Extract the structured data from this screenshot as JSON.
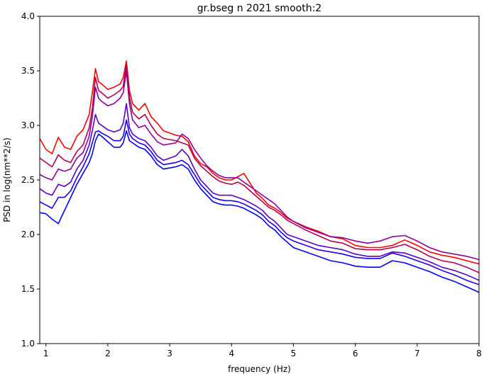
{
  "chart_data": {
    "type": "line",
    "title": "gr.bseg n 2021 smooth:2",
    "xlabel": "frequency (Hz)",
    "ylabel": "PSD in log(nm**2/s)",
    "xlim": [
      0.9,
      8.0
    ],
    "ylim": [
      1.0,
      4.0
    ],
    "xticks": [
      "1",
      "2",
      "3",
      "4",
      "5",
      "6",
      "7",
      "8"
    ],
    "yticks": [
      "1.0",
      "1.5",
      "2.0",
      "2.5",
      "3.0",
      "3.5",
      "4.0"
    ],
    "grid": false,
    "legend": "none",
    "series": [
      {
        "color": "#ff0000",
        "x": [
          0.9,
          1.0,
          1.1,
          1.2,
          1.3,
          1.4,
          1.5,
          1.6,
          1.7,
          1.75,
          1.8,
          1.85,
          1.9,
          2.0,
          2.1,
          2.2,
          2.25,
          2.3,
          2.35,
          2.4,
          2.5,
          2.6,
          2.7,
          2.8,
          2.9,
          3.0,
          3.1,
          3.2,
          3.3,
          3.4,
          3.5,
          3.6,
          3.7,
          3.8,
          3.9,
          4.0,
          4.1,
          4.2,
          4.3,
          4.4,
          4.5,
          4.6,
          4.7,
          4.8,
          4.9,
          5.0,
          5.2,
          5.4,
          5.6,
          5.8,
          6.0,
          6.2,
          6.4,
          6.6,
          6.8,
          7.0,
          7.2,
          7.4,
          7.6,
          7.8,
          8.0
        ],
        "y": [
          2.88,
          2.78,
          2.74,
          2.89,
          2.8,
          2.78,
          2.9,
          2.96,
          3.1,
          3.3,
          3.52,
          3.4,
          3.38,
          3.33,
          3.35,
          3.38,
          3.44,
          3.59,
          3.32,
          3.2,
          3.14,
          3.2,
          3.08,
          3.02,
          2.95,
          2.93,
          2.91,
          2.9,
          2.85,
          2.72,
          2.65,
          2.62,
          2.56,
          2.52,
          2.5,
          2.5,
          2.53,
          2.56,
          2.47,
          2.38,
          2.33,
          2.27,
          2.24,
          2.2,
          2.15,
          2.12,
          2.07,
          2.03,
          1.98,
          1.96,
          1.9,
          1.88,
          1.88,
          1.9,
          1.95,
          1.9,
          1.84,
          1.81,
          1.79,
          1.76,
          1.73
        ]
      },
      {
        "color": "#b3004d",
        "x": [
          0.9,
          1.0,
          1.1,
          1.2,
          1.3,
          1.4,
          1.5,
          1.6,
          1.7,
          1.75,
          1.8,
          1.85,
          1.9,
          2.0,
          2.1,
          2.2,
          2.25,
          2.3,
          2.35,
          2.4,
          2.5,
          2.6,
          2.7,
          2.8,
          2.9,
          3.0,
          3.1,
          3.2,
          3.3,
          3.4,
          3.5,
          3.6,
          3.7,
          3.8,
          3.9,
          4.0,
          4.1,
          4.2,
          4.3,
          4.4,
          4.5,
          4.6,
          4.7,
          4.8,
          4.9,
          5.0,
          5.2,
          5.4,
          5.6,
          5.8,
          6.0,
          6.2,
          6.4,
          6.6,
          6.8,
          7.0,
          7.2,
          7.4,
          7.6,
          7.8,
          8.0
        ],
        "y": [
          2.7,
          2.66,
          2.62,
          2.73,
          2.68,
          2.66,
          2.76,
          2.82,
          2.98,
          3.15,
          3.44,
          3.32,
          3.3,
          3.25,
          3.28,
          3.32,
          3.36,
          3.56,
          3.26,
          3.12,
          3.06,
          3.1,
          3.0,
          2.92,
          2.88,
          2.87,
          2.86,
          2.84,
          2.82,
          2.7,
          2.63,
          2.58,
          2.53,
          2.49,
          2.47,
          2.46,
          2.48,
          2.45,
          2.4,
          2.35,
          2.3,
          2.25,
          2.22,
          2.18,
          2.13,
          2.1,
          2.04,
          1.99,
          1.94,
          1.92,
          1.87,
          1.86,
          1.86,
          1.88,
          1.91,
          1.86,
          1.8,
          1.76,
          1.74,
          1.7,
          1.65
        ]
      },
      {
        "color": "#8a0099",
        "x": [
          0.9,
          1.0,
          1.1,
          1.2,
          1.3,
          1.4,
          1.5,
          1.6,
          1.7,
          1.75,
          1.8,
          1.85,
          1.9,
          2.0,
          2.1,
          2.2,
          2.25,
          2.3,
          2.35,
          2.4,
          2.5,
          2.6,
          2.7,
          2.8,
          2.9,
          3.0,
          3.1,
          3.2,
          3.3,
          3.4,
          3.5,
          3.6,
          3.7,
          3.8,
          3.9,
          4.0,
          4.1,
          4.2,
          4.3,
          4.4,
          4.5,
          4.6,
          4.7,
          4.8,
          4.9,
          5.0,
          5.2,
          5.4,
          5.6,
          5.8,
          6.0,
          6.2,
          6.4,
          6.6,
          6.8,
          7.0,
          7.2,
          7.4,
          7.6,
          7.8,
          8.0
        ],
        "y": [
          2.55,
          2.52,
          2.5,
          2.6,
          2.58,
          2.6,
          2.7,
          2.75,
          2.9,
          3.08,
          3.35,
          3.25,
          3.22,
          3.18,
          3.2,
          3.25,
          3.3,
          3.5,
          3.2,
          3.05,
          2.98,
          3.0,
          2.92,
          2.85,
          2.82,
          2.83,
          2.84,
          2.92,
          2.88,
          2.78,
          2.7,
          2.63,
          2.58,
          2.54,
          2.52,
          2.52,
          2.52,
          2.48,
          2.44,
          2.4,
          2.36,
          2.32,
          2.28,
          2.22,
          2.16,
          2.12,
          2.06,
          2.02,
          1.98,
          1.97,
          1.94,
          1.92,
          1.94,
          1.98,
          1.99,
          1.94,
          1.88,
          1.84,
          1.82,
          1.8,
          1.77
        ]
      },
      {
        "color": "#5a00c8",
        "x": [
          0.9,
          1.0,
          1.1,
          1.2,
          1.3,
          1.4,
          1.5,
          1.6,
          1.7,
          1.75,
          1.8,
          1.85,
          1.9,
          2.0,
          2.1,
          2.2,
          2.25,
          2.3,
          2.35,
          2.4,
          2.5,
          2.6,
          2.7,
          2.8,
          2.9,
          3.0,
          3.1,
          3.2,
          3.3,
          3.4,
          3.5,
          3.6,
          3.7,
          3.8,
          3.9,
          4.0,
          4.1,
          4.2,
          4.3,
          4.4,
          4.5,
          4.6,
          4.7,
          4.8,
          4.9,
          5.0,
          5.2,
          5.4,
          5.6,
          5.8,
          6.0,
          6.2,
          6.4,
          6.6,
          6.8,
          7.0,
          7.2,
          7.4,
          7.6,
          7.8,
          8.0
        ],
        "y": [
          2.42,
          2.38,
          2.36,
          2.46,
          2.44,
          2.48,
          2.6,
          2.68,
          2.82,
          2.95,
          3.1,
          3.02,
          3.0,
          2.96,
          2.94,
          2.96,
          3.02,
          3.2,
          2.98,
          2.92,
          2.88,
          2.86,
          2.8,
          2.72,
          2.68,
          2.7,
          2.72,
          2.78,
          2.72,
          2.6,
          2.5,
          2.44,
          2.38,
          2.36,
          2.36,
          2.36,
          2.34,
          2.32,
          2.29,
          2.26,
          2.22,
          2.16,
          2.12,
          2.06,
          2.0,
          1.98,
          1.94,
          1.9,
          1.88,
          1.86,
          1.82,
          1.8,
          1.8,
          1.84,
          1.83,
          1.79,
          1.75,
          1.7,
          1.67,
          1.63,
          1.58
        ]
      },
      {
        "color": "#1a00e6",
        "x": [
          0.9,
          1.0,
          1.1,
          1.2,
          1.3,
          1.4,
          1.5,
          1.6,
          1.7,
          1.75,
          1.8,
          1.85,
          1.9,
          2.0,
          2.1,
          2.2,
          2.25,
          2.3,
          2.35,
          2.4,
          2.5,
          2.6,
          2.7,
          2.8,
          2.9,
          3.0,
          3.1,
          3.2,
          3.3,
          3.4,
          3.5,
          3.6,
          3.7,
          3.8,
          3.9,
          4.0,
          4.1,
          4.2,
          4.3,
          4.4,
          4.5,
          4.6,
          4.7,
          4.8,
          4.9,
          5.0,
          5.2,
          5.4,
          5.6,
          5.8,
          6.0,
          6.2,
          6.4,
          6.6,
          6.8,
          7.0,
          7.2,
          7.4,
          7.6,
          7.8,
          8.0
        ],
        "y": [
          2.3,
          2.27,
          2.24,
          2.34,
          2.34,
          2.4,
          2.52,
          2.62,
          2.74,
          2.84,
          2.94,
          2.95,
          2.93,
          2.9,
          2.86,
          2.86,
          2.9,
          3.05,
          2.92,
          2.88,
          2.84,
          2.82,
          2.76,
          2.68,
          2.64,
          2.65,
          2.66,
          2.68,
          2.64,
          2.55,
          2.46,
          2.4,
          2.34,
          2.32,
          2.31,
          2.31,
          2.3,
          2.28,
          2.25,
          2.22,
          2.18,
          2.12,
          2.08,
          2.02,
          1.97,
          1.94,
          1.9,
          1.86,
          1.84,
          1.82,
          1.79,
          1.78,
          1.78,
          1.83,
          1.8,
          1.76,
          1.72,
          1.67,
          1.63,
          1.58,
          1.54
        ]
      },
      {
        "color": "#0000ff",
        "x": [
          0.9,
          1.0,
          1.1,
          1.2,
          1.3,
          1.4,
          1.5,
          1.6,
          1.7,
          1.75,
          1.8,
          1.85,
          1.9,
          2.0,
          2.1,
          2.2,
          2.25,
          2.3,
          2.35,
          2.4,
          2.5,
          2.6,
          2.7,
          2.8,
          2.9,
          3.0,
          3.1,
          3.2,
          3.3,
          3.4,
          3.5,
          3.6,
          3.7,
          3.8,
          3.9,
          4.0,
          4.1,
          4.2,
          4.3,
          4.4,
          4.5,
          4.6,
          4.7,
          4.8,
          4.9,
          5.0,
          5.2,
          5.4,
          5.6,
          5.8,
          6.0,
          6.2,
          6.4,
          6.6,
          6.8,
          7.0,
          7.2,
          7.4,
          7.6,
          7.8,
          8.0
        ],
        "y": [
          2.2,
          2.19,
          2.14,
          2.1,
          2.22,
          2.34,
          2.46,
          2.56,
          2.66,
          2.74,
          2.86,
          2.92,
          2.9,
          2.85,
          2.8,
          2.8,
          2.84,
          2.95,
          2.86,
          2.84,
          2.8,
          2.78,
          2.72,
          2.64,
          2.6,
          2.61,
          2.62,
          2.64,
          2.6,
          2.5,
          2.42,
          2.36,
          2.3,
          2.28,
          2.27,
          2.27,
          2.26,
          2.24,
          2.21,
          2.18,
          2.14,
          2.08,
          2.04,
          1.98,
          1.93,
          1.88,
          1.84,
          1.8,
          1.76,
          1.74,
          1.71,
          1.7,
          1.7,
          1.76,
          1.74,
          1.7,
          1.66,
          1.61,
          1.57,
          1.52,
          1.47
        ]
      }
    ]
  }
}
